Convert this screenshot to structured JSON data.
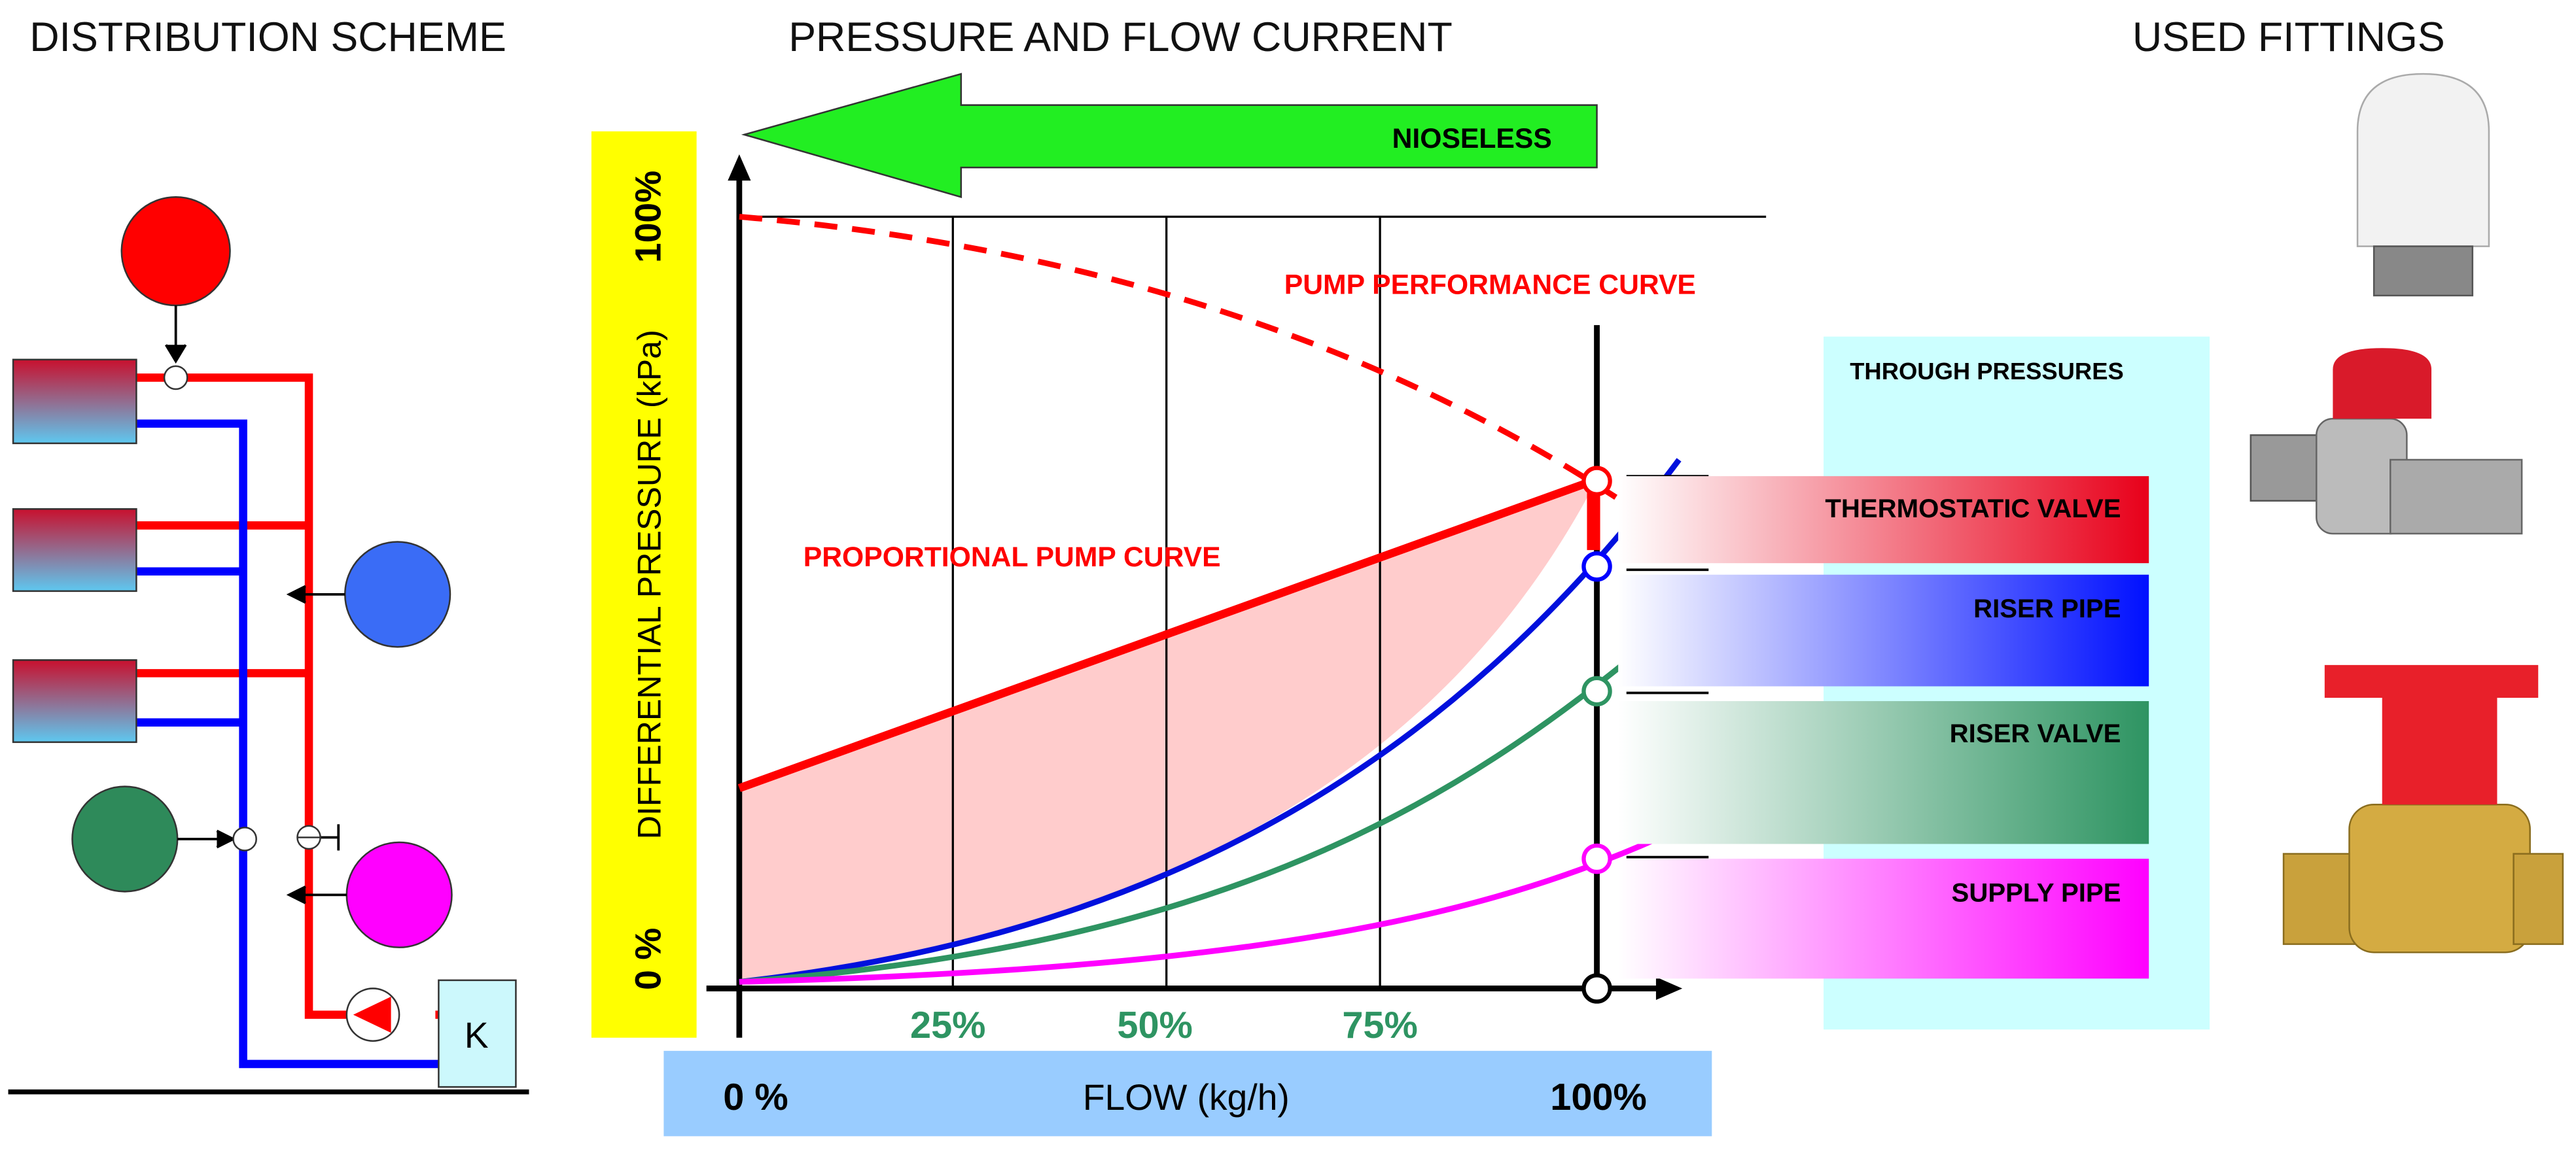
{
  "titles": {
    "scheme": "DISTRIBUTION SCHEME",
    "chart": "PRESSURE AND FLOW CURRENT",
    "fittings": "USED FITTINGS"
  },
  "scheme": {
    "boiler": "K"
  },
  "chart": {
    "arrow": "NIOSELESS",
    "y_axis": "DIFFERENTIAL PRESSURE  (kPa)",
    "y_top": "100%",
    "y_bottom": "0 %",
    "x_axis": "FLOW   (kg/h)",
    "x_start": "0 %",
    "x_end": "100%",
    "x_ticks": [
      "25%",
      "50%",
      "75%"
    ],
    "pump_curve": "PUMP PERFORMANCE CURVE",
    "proportional_curve": "PROPORTIONAL PUMP CURVE"
  },
  "pressures": {
    "title": "THROUGH PRESSURES",
    "items": [
      "THERMOSTATIC VALVE",
      "RISER PIPE",
      "RISER VALVE",
      "SUPPLY PIPE"
    ]
  }
}
